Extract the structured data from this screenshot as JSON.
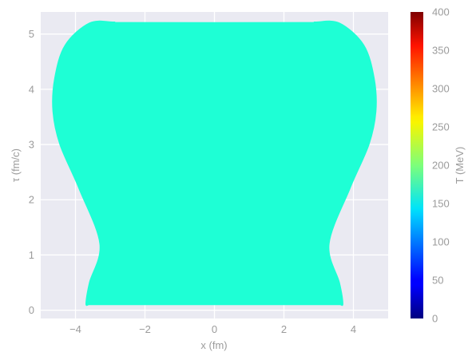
{
  "chart_data": {
    "type": "area",
    "xlabel": "x (fm)",
    "ylabel": "τ (fm/c)",
    "xlim": [
      -5.0,
      5.0
    ],
    "ylim": [
      -0.15,
      5.4
    ],
    "xticks": [
      -4,
      -2,
      0,
      2,
      4
    ],
    "xtick_labels": [
      "−4",
      "−2",
      "0",
      "2",
      "4"
    ],
    "yticks": [
      0,
      1,
      2,
      3,
      4,
      5
    ],
    "ytick_labels": [
      "0",
      "1",
      "2",
      "3",
      "4",
      "5"
    ],
    "grid": true,
    "fill_color": "#1effd5",
    "background_color": "#eaeaf2",
    "boundary": {
      "x": [
        -3.62,
        -3.7,
        -3.6,
        -3.3,
        -3.9,
        -4.45,
        -4.65,
        -4.6,
        -4.3,
        -3.6,
        -2.9,
        -2.5,
        2.5,
        2.9,
        3.6,
        4.3,
        4.6,
        4.65,
        4.45,
        3.9,
        3.3,
        3.6,
        3.7,
        3.62
      ],
      "y": [
        0.1,
        0.12,
        0.5,
        1.2,
        2.2,
        3.0,
        3.6,
        4.2,
        4.8,
        5.2,
        5.22,
        5.21,
        5.21,
        5.22,
        5.2,
        4.8,
        4.2,
        3.6,
        3.0,
        2.2,
        1.2,
        0.5,
        0.12,
        0.1
      ]
    },
    "colorbar": {
      "label": "T (MeV)",
      "range": [
        0,
        400
      ],
      "ticks": [
        0,
        50,
        100,
        150,
        200,
        250,
        300,
        350,
        400
      ],
      "tick_labels": [
        "0",
        "50",
        "100",
        "150",
        "200",
        "250",
        "300",
        "350",
        "400"
      ],
      "colormap": "jet"
    }
  }
}
